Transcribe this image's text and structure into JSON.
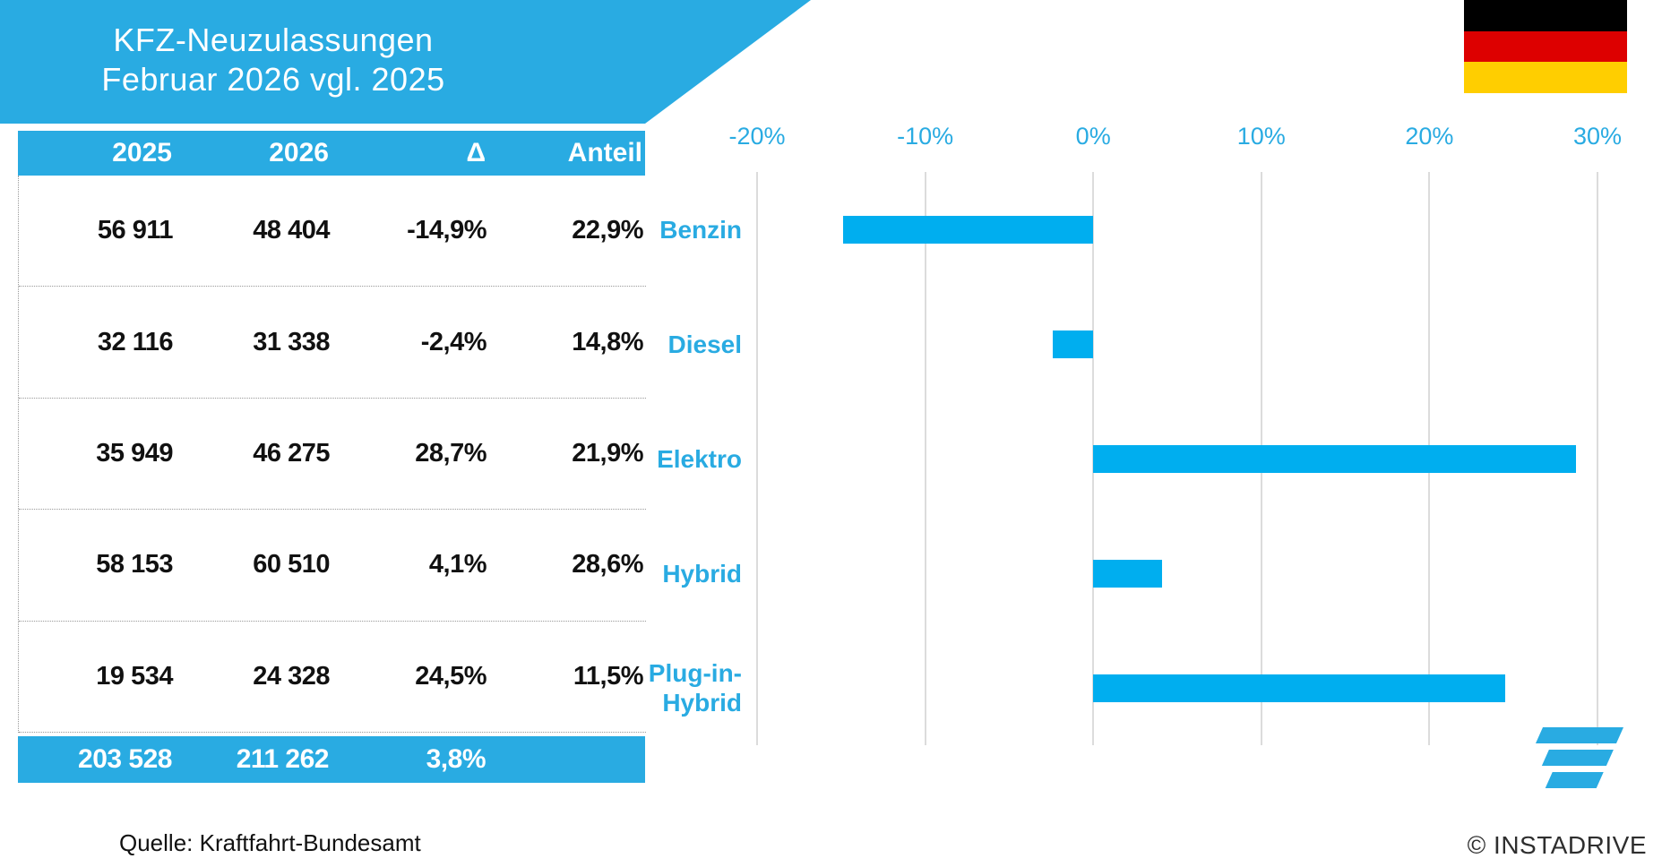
{
  "banner": {
    "title_line1": "KFZ-Neuzulassungen",
    "title_line2": "Februar 2026 vgl. 2025"
  },
  "flag": {
    "stripe_colors": [
      "#000000",
      "#DD0000",
      "#FFCE00"
    ]
  },
  "table": {
    "headers": [
      "2025",
      "2026",
      "Δ",
      "Anteil"
    ],
    "rows": [
      [
        "56 911",
        "48 404",
        "-14,9%",
        "22,9%"
      ],
      [
        "32 116",
        "31 338",
        "-2,4%",
        "14,8%"
      ],
      [
        "35 949",
        "46 275",
        "28,7%",
        "21,9%"
      ],
      [
        "58 153",
        "60 510",
        "4,1%",
        "28,6%"
      ],
      [
        "19 534",
        "24 328",
        "24,5%",
        "11,5%"
      ]
    ],
    "total_row": [
      "203 528",
      "211 262",
      "3,8%",
      ""
    ]
  },
  "source_note": "Quelle: Kraftfahrt-Bundesamt",
  "branding": {
    "copyright": "© INSTADRIVE",
    "logo_color": "#29ABE2"
  },
  "colors": {
    "accent_cyan": "#29ABE2",
    "bar_cyan": "#00AEEF",
    "gridline_gray": "#DCDCDC",
    "text_dark": "#111111"
  },
  "chart_data": {
    "type": "bar",
    "orientation": "horizontal",
    "title": "KFZ-Neuzulassungen Februar 2026 vgl. 2025",
    "categories": [
      "Benzin",
      "Diesel",
      "Elektro",
      "Hybrid",
      "Plug-in-Hybrid"
    ],
    "category_display_lines": [
      [
        "Benzin"
      ],
      [
        "Diesel"
      ],
      [
        "Elektro"
      ],
      [
        "Hybrid"
      ],
      [
        "Plug-in-",
        "Hybrid"
      ]
    ],
    "values": [
      -14.9,
      -2.4,
      28.7,
      4.1,
      24.5
    ],
    "unit": "%",
    "xlim": [
      -20,
      30
    ],
    "x_ticks": [
      -20,
      -10,
      0,
      10,
      20,
      30
    ],
    "x_tick_labels": [
      "-20%",
      "-10%",
      "0%",
      "10%",
      "20%",
      "30%"
    ],
    "grid": true,
    "legend": false,
    "bar_color": "#00AEEF",
    "label_color": "#29ABE2",
    "registrations_2025": [
      56911,
      32116,
      35949,
      58153,
      19534
    ],
    "registrations_2026": [
      48404,
      31338,
      46275,
      60510,
      24328
    ],
    "delta_pct": [
      -14.9,
      -2.4,
      28.7,
      4.1,
      24.5
    ],
    "share_2026_pct": [
      22.9,
      14.8,
      21.9,
      28.6,
      11.5
    ],
    "totals": {
      "registrations_2025": 203528,
      "registrations_2026": 211262,
      "delta_pct": 3.8
    }
  }
}
